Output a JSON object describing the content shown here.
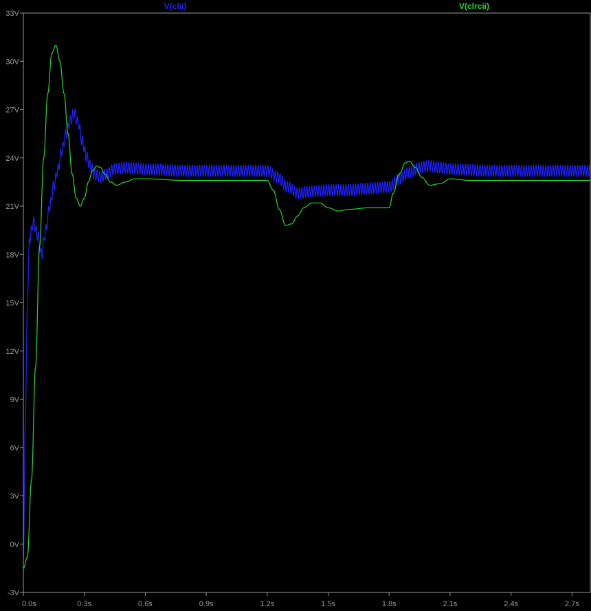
{
  "chart_data": {
    "type": "line",
    "xlim": [
      0,
      2.79
    ],
    "ylim": [
      -3,
      33
    ],
    "x_ticks": [
      {
        "value": 0.0,
        "label": "0.0s"
      },
      {
        "value": 0.3,
        "label": "0.3s"
      },
      {
        "value": 0.6,
        "label": "0.6s"
      },
      {
        "value": 0.9,
        "label": "0.9s"
      },
      {
        "value": 1.2,
        "label": "1.2s"
      },
      {
        "value": 1.5,
        "label": "1.5s"
      },
      {
        "value": 1.8,
        "label": "1.8s"
      },
      {
        "value": 2.1,
        "label": "2.1s"
      },
      {
        "value": 2.4,
        "label": "2.4s"
      },
      {
        "value": 2.7,
        "label": "2.7s"
      }
    ],
    "y_ticks": [
      {
        "value": 33,
        "label": "33V"
      },
      {
        "value": 30,
        "label": "30V"
      },
      {
        "value": 27,
        "label": "27V"
      },
      {
        "value": 24,
        "label": "24V"
      },
      {
        "value": 21,
        "label": "21V"
      },
      {
        "value": 18,
        "label": "18V"
      },
      {
        "value": 15,
        "label": "15V"
      },
      {
        "value": 12,
        "label": "12V"
      },
      {
        "value": 9,
        "label": "9V"
      },
      {
        "value": 6,
        "label": "6V"
      },
      {
        "value": 3,
        "label": "3V"
      },
      {
        "value": 0,
        "label": "0V"
      },
      {
        "value": -3,
        "label": "-3V"
      }
    ],
    "grid": false,
    "background": "#000000",
    "axis_color": "#9a9a9a",
    "series": [
      {
        "name": "V(clii)",
        "color": "#2020ff",
        "ripple_amplitude": 0.35,
        "ripple_period": 0.012,
        "x": [
          0.0,
          0.01,
          0.02,
          0.03,
          0.05,
          0.07,
          0.09,
          0.11,
          0.13,
          0.15,
          0.17,
          0.19,
          0.21,
          0.23,
          0.25,
          0.27,
          0.29,
          0.31,
          0.33,
          0.35,
          0.38,
          0.41,
          0.45,
          0.5,
          0.6,
          0.8,
          1.0,
          1.2,
          1.25,
          1.3,
          1.35,
          1.4,
          1.5,
          1.6,
          1.7,
          1.8,
          1.85,
          1.9,
          1.95,
          2.0,
          2.05,
          2.1,
          2.3,
          2.79
        ],
        "y": [
          -1.0,
          8.0,
          15.0,
          19.0,
          20.0,
          19.2,
          18.0,
          19.5,
          21.0,
          22.3,
          23.3,
          24.5,
          25.5,
          26.3,
          26.8,
          26.2,
          25.0,
          24.1,
          23.5,
          23.0,
          22.8,
          23.0,
          23.3,
          23.4,
          23.3,
          23.2,
          23.2,
          23.2,
          22.8,
          22.2,
          21.8,
          21.9,
          22.0,
          22.0,
          22.1,
          22.2,
          22.7,
          23.1,
          23.4,
          23.5,
          23.4,
          23.3,
          23.2,
          23.2
        ]
      },
      {
        "name": "V(clrcii)",
        "color": "#22dd22",
        "ripple_amplitude": 0,
        "ripple_period": 0,
        "x": [
          0.0,
          0.02,
          0.04,
          0.06,
          0.08,
          0.1,
          0.12,
          0.14,
          0.16,
          0.18,
          0.2,
          0.22,
          0.24,
          0.26,
          0.28,
          0.3,
          0.32,
          0.34,
          0.36,
          0.38,
          0.4,
          0.43,
          0.46,
          0.5,
          0.55,
          0.6,
          0.8,
          1.0,
          1.2,
          1.23,
          1.26,
          1.29,
          1.32,
          1.35,
          1.38,
          1.42,
          1.46,
          1.5,
          1.55,
          1.6,
          1.7,
          1.8,
          1.82,
          1.85,
          1.88,
          1.9,
          1.93,
          1.96,
          2.0,
          2.05,
          2.1,
          2.2,
          2.79
        ],
        "y": [
          -1.5,
          -0.8,
          4.0,
          11.0,
          18.5,
          24.0,
          28.0,
          30.5,
          31.0,
          30.0,
          28.0,
          25.5,
          23.0,
          21.5,
          21.0,
          21.5,
          22.5,
          23.2,
          23.5,
          23.4,
          23.0,
          22.5,
          22.3,
          22.5,
          22.7,
          22.7,
          22.6,
          22.6,
          22.6,
          22.0,
          20.8,
          19.8,
          19.9,
          20.4,
          20.9,
          21.2,
          21.2,
          20.9,
          20.7,
          20.8,
          20.9,
          20.9,
          21.8,
          23.0,
          23.7,
          23.8,
          23.4,
          22.8,
          22.3,
          22.4,
          22.7,
          22.6,
          22.6
        ]
      }
    ]
  }
}
